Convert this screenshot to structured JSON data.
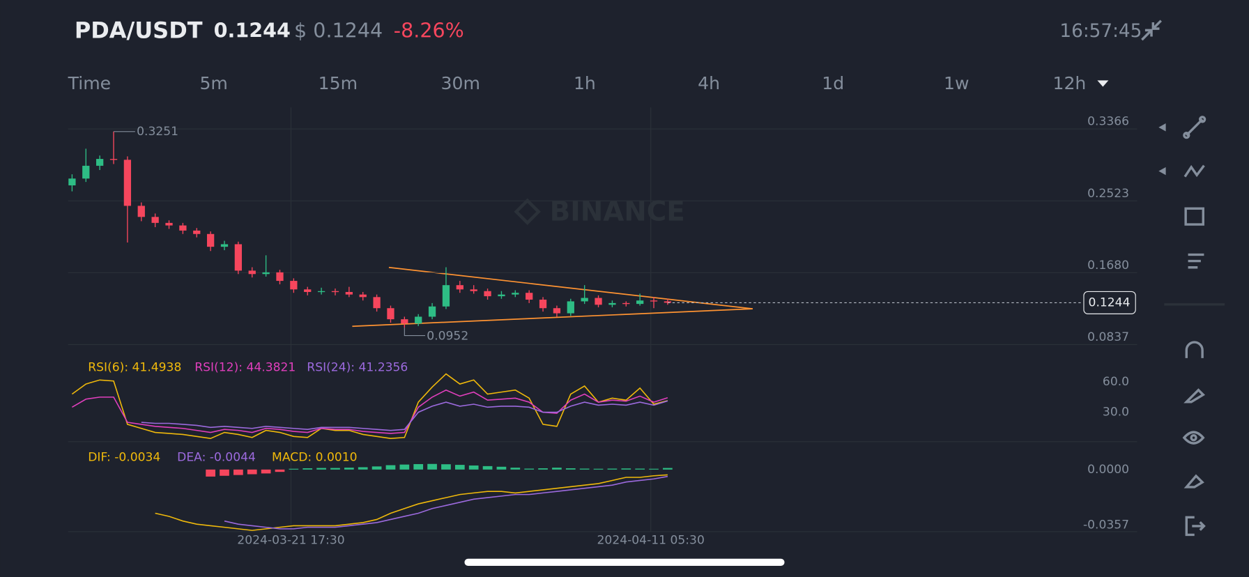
{
  "header": {
    "pair": "PDA/USDT",
    "price": "0.1244",
    "usd_price": "$ 0.1244",
    "change": "-8.26%",
    "time": "16:57:45"
  },
  "timeframes": [
    "Time",
    "5m",
    "15m",
    "30m",
    "1h",
    "4h",
    "1d",
    "1w",
    "12h"
  ],
  "watermark": "BINANCE",
  "x_labels": [
    "2024-03-21 17:30",
    "2024-04-11 05:30"
  ],
  "chart_data": [
    {
      "type": "candlestick",
      "up_color": "#2ebd85",
      "down_color": "#f6465d",
      "ylim": [
        0.0762,
        0.3534
      ],
      "yticks": [
        0.3366,
        0.2523,
        {
          "value": 0.168,
          "label": "0.1680"
        },
        0.0837
      ],
      "grid": true,
      "last_price": 0.1244,
      "max_label": "0.3251",
      "min_label": "0.0952",
      "candles": [
        [
          0.262,
          0.275,
          0.255,
          0.27
        ],
        [
          0.27,
          0.305,
          0.266,
          0.285
        ],
        [
          0.285,
          0.297,
          0.28,
          0.293
        ],
        [
          0.293,
          0.3251,
          0.287,
          0.292
        ],
        [
          0.292,
          0.296,
          0.195,
          0.238
        ],
        [
          0.238,
          0.242,
          0.22,
          0.225
        ],
        [
          0.225,
          0.229,
          0.213,
          0.218
        ],
        [
          0.218,
          0.221,
          0.211,
          0.215
        ],
        [
          0.215,
          0.218,
          0.205,
          0.209
        ],
        [
          0.209,
          0.212,
          0.201,
          0.205
        ],
        [
          0.205,
          0.208,
          0.185,
          0.19
        ],
        [
          0.19,
          0.197,
          0.186,
          0.193
        ],
        [
          0.193,
          0.196,
          0.158,
          0.162
        ],
        [
          0.162,
          0.166,
          0.154,
          0.158
        ],
        [
          0.158,
          0.18,
          0.155,
          0.16
        ],
        [
          0.16,
          0.163,
          0.146,
          0.15
        ],
        [
          0.15,
          0.153,
          0.136,
          0.14
        ],
        [
          0.14,
          0.143,
          0.133,
          0.137
        ],
        [
          0.137,
          0.142,
          0.134,
          0.138
        ],
        [
          0.138,
          0.141,
          0.133,
          0.137
        ],
        [
          0.137,
          0.143,
          0.131,
          0.134
        ],
        [
          0.134,
          0.137,
          0.127,
          0.131
        ],
        [
          0.131,
          0.134,
          0.114,
          0.118
        ],
        [
          0.118,
          0.121,
          0.101,
          0.105
        ],
        [
          0.105,
          0.108,
          0.0952,
          0.1
        ],
        [
          0.1,
          0.111,
          0.097,
          0.108
        ],
        [
          0.108,
          0.124,
          0.105,
          0.12
        ],
        [
          0.12,
          0.166,
          0.117,
          0.145
        ],
        [
          0.145,
          0.15,
          0.136,
          0.14
        ],
        [
          0.14,
          0.145,
          0.135,
          0.138
        ],
        [
          0.138,
          0.141,
          0.128,
          0.132
        ],
        [
          0.132,
          0.138,
          0.129,
          0.134
        ],
        [
          0.134,
          0.139,
          0.131,
          0.136
        ],
        [
          0.136,
          0.139,
          0.124,
          0.128
        ],
        [
          0.128,
          0.131,
          0.114,
          0.118
        ],
        [
          0.118,
          0.121,
          0.108,
          0.112
        ],
        [
          0.112,
          0.129,
          0.109,
          0.126
        ],
        [
          0.126,
          0.145,
          0.123,
          0.13
        ],
        [
          0.13,
          0.133,
          0.119,
          0.122
        ],
        [
          0.122,
          0.127,
          0.119,
          0.124
        ],
        [
          0.124,
          0.126,
          0.12,
          0.123
        ],
        [
          0.123,
          0.135,
          0.121,
          0.127
        ],
        [
          0.127,
          0.131,
          0.118,
          0.126
        ],
        [
          0.126,
          0.129,
          0.122,
          0.1244
        ]
      ]
    },
    {
      "type": "line",
      "ylim": [
        0.8,
        87.6
      ],
      "yticks": [
        {
          "value": 60,
          "label": "60.0"
        },
        {
          "value": 30,
          "label": "30.0"
        }
      ],
      "series": [
        {
          "name": "RSI(6): 41.4938",
          "color": "#f0b90b",
          "values": [
            48,
            58,
            62,
            61,
            18,
            14,
            10,
            9,
            8,
            6,
            4,
            10,
            8,
            5,
            12,
            10,
            6,
            5,
            14,
            12,
            12,
            8,
            6,
            4,
            5,
            40,
            55,
            68,
            58,
            62,
            48,
            50,
            52,
            44,
            18,
            16,
            48,
            56,
            40,
            44,
            42,
            54,
            38,
            41.4938
          ]
        },
        {
          "name": "RSI(12): 44.3821",
          "color": "#e13fbd",
          "values": [
            35,
            43,
            45,
            45,
            20,
            18,
            16,
            15,
            14,
            12,
            10,
            13,
            12,
            10,
            14,
            13,
            11,
            10,
            14,
            13,
            13,
            11,
            10,
            9,
            10,
            35,
            45,
            52,
            46,
            50,
            42,
            43,
            44,
            40,
            30,
            29,
            42,
            48,
            40,
            42,
            41,
            46,
            40,
            44.3821
          ]
        },
        {
          "name": "RSI(24): 41.2356",
          "color": "#9c6ade",
          "values": [
            null,
            null,
            null,
            null,
            null,
            20,
            19,
            19,
            18,
            17,
            15,
            16,
            15,
            14,
            16,
            15,
            14,
            13,
            15,
            15,
            15,
            14,
            13,
            12,
            13,
            30,
            36,
            40,
            36,
            38,
            35,
            36,
            36,
            35,
            30,
            30,
            36,
            40,
            37,
            38,
            37,
            40,
            37,
            41.2356
          ]
        }
      ]
    },
    {
      "type": "macd",
      "ylim": [
        -0.0398,
        0.0153
      ],
      "yticks": [
        {
          "value": 0,
          "label": "0.0000"
        },
        -0.0357
      ],
      "up_color": "#2ebd85",
      "down_color": "#f6465d",
      "histogram": {
        "name": "MACD: 0.0010",
        "color": "#f0b90b",
        "values": [
          null,
          null,
          null,
          null,
          null,
          null,
          null,
          null,
          null,
          null,
          -0.0045,
          -0.004,
          -0.0035,
          -0.003,
          -0.0025,
          -0.0015,
          0.0005,
          0.0008,
          0.001,
          0.001,
          0.0012,
          0.0015,
          0.002,
          0.0028,
          0.0032,
          0.0035,
          0.0036,
          0.0034,
          0.003,
          0.0026,
          0.0022,
          0.0018,
          0.0012,
          0.0006,
          0.0008,
          0.0012,
          0.0008,
          0.0006,
          0.0005,
          0.0006,
          0.0007,
          0.0006,
          0.0005,
          0.001
        ]
      },
      "series": [
        {
          "name": "DIF: -0.0034",
          "color": "#f0b90b",
          "values": [
            null,
            null,
            null,
            null,
            null,
            null,
            -0.028,
            -0.03,
            -0.033,
            -0.035,
            -0.036,
            -0.037,
            -0.038,
            -0.039,
            -0.038,
            -0.037,
            -0.036,
            -0.036,
            -0.036,
            -0.036,
            -0.035,
            -0.034,
            -0.032,
            -0.028,
            -0.025,
            -0.022,
            -0.02,
            -0.018,
            -0.016,
            -0.015,
            -0.014,
            -0.014,
            -0.015,
            -0.014,
            -0.013,
            -0.012,
            -0.011,
            -0.01,
            -0.009,
            -0.007,
            -0.005,
            -0.005,
            -0.004,
            -0.0034
          ]
        },
        {
          "name": "DEA: -0.0044",
          "color": "#9c6ade",
          "values": [
            null,
            null,
            null,
            null,
            null,
            null,
            null,
            null,
            null,
            null,
            null,
            -0.033,
            -0.035,
            -0.036,
            -0.037,
            -0.038,
            -0.038,
            -0.037,
            -0.037,
            -0.037,
            -0.036,
            -0.035,
            -0.034,
            -0.032,
            -0.03,
            -0.028,
            -0.025,
            -0.023,
            -0.021,
            -0.019,
            -0.018,
            -0.017,
            -0.016,
            -0.016,
            -0.015,
            -0.014,
            -0.013,
            -0.012,
            -0.011,
            -0.01,
            -0.008,
            -0.007,
            -0.006,
            -0.0044
          ]
        }
      ]
    }
  ]
}
